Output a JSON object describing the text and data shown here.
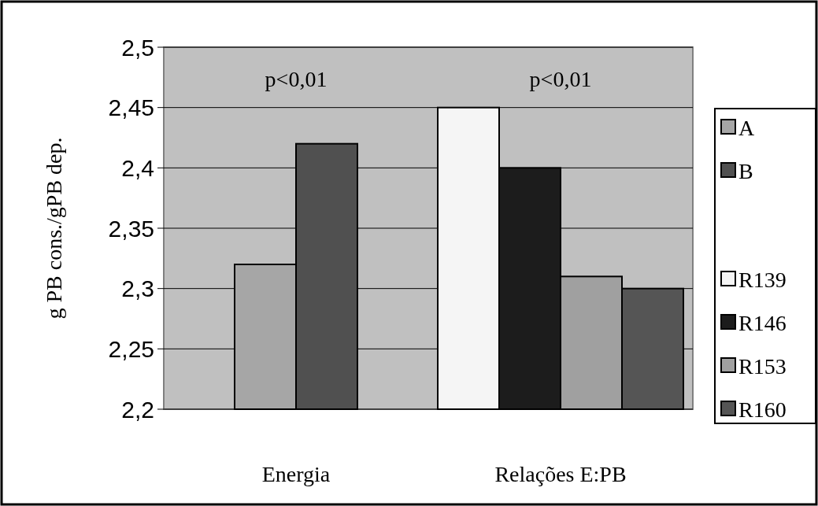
{
  "chart_data": {
    "type": "bar",
    "ylabel": "g PB cons./gPB dep.",
    "categories": [
      "Energia",
      "Relações E:PB"
    ],
    "series": [
      {
        "name": "A",
        "color": "#a6a6a6",
        "values": [
          2.32,
          null
        ]
      },
      {
        "name": "B",
        "color": "#505050",
        "values": [
          2.42,
          null
        ]
      },
      {
        "name": "R139",
        "color": "#f5f5f5",
        "values": [
          null,
          2.45
        ]
      },
      {
        "name": "R146",
        "color": "#1c1c1c",
        "values": [
          null,
          2.4
        ]
      },
      {
        "name": "R153",
        "color": "#a0a0a0",
        "values": [
          null,
          2.31
        ]
      },
      {
        "name": "R160",
        "color": "#555555",
        "values": [
          null,
          2.3
        ]
      }
    ],
    "ylim": [
      2.2,
      2.5
    ],
    "yticks": [
      {
        "value": 2.2,
        "label": "2,2"
      },
      {
        "value": 2.25,
        "label": "2,25"
      },
      {
        "value": 2.3,
        "label": "2,3"
      },
      {
        "value": 2.35,
        "label": "2,35"
      },
      {
        "value": 2.4,
        "label": "2,4"
      },
      {
        "value": 2.45,
        "label": "2,45"
      },
      {
        "value": 2.5,
        "label": "2,5"
      }
    ],
    "grid": "y",
    "legend": "right",
    "annotations": [
      "p<0,01",
      "p<0,01"
    ]
  }
}
